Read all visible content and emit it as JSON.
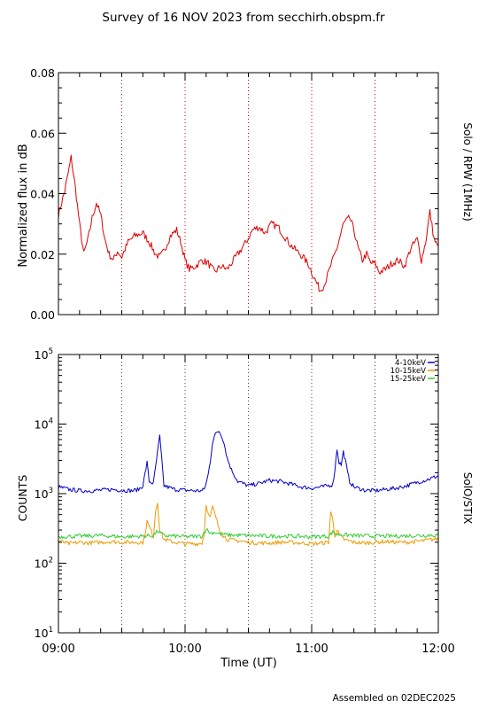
{
  "title": "Survey of 16 NOV 2023 from secchirh.obspm.fr",
  "footer": "Assembled on 02DEC2025",
  "xlabel": "Time (UT)",
  "x_ticks": [
    "09:00",
    "10:00",
    "11:00",
    "12:00"
  ],
  "chart_data": [
    {
      "type": "line",
      "name": "rpw",
      "ylabel": "Normalized flux in dB",
      "right_label": "Solo / RPW (1MHz)",
      "xlim": [
        "09:00",
        "12:00"
      ],
      "ylim": [
        0,
        0.08
      ],
      "y_ticks": [
        "0.00",
        "0.02",
        "0.04",
        "0.06",
        "0.08"
      ],
      "grid": "dotted red vertical lines every 30 min",
      "series": [
        {
          "color": "#dd0000",
          "x": [
            "09:00",
            "09:03",
            "09:05",
            "09:06",
            "09:08",
            "09:10",
            "09:12",
            "09:14",
            "09:16",
            "09:18",
            "09:20",
            "09:22",
            "09:24",
            "09:26",
            "09:28",
            "09:30",
            "09:33",
            "09:36",
            "09:40",
            "09:43",
            "09:46",
            "09:48",
            "09:50",
            "09:53",
            "09:56",
            "09:58",
            "10:00",
            "10:02",
            "10:05",
            "10:08",
            "10:11",
            "10:14",
            "10:17",
            "10:20",
            "10:23",
            "10:26",
            "10:29",
            "10:32",
            "10:35",
            "10:38",
            "10:41",
            "10:44",
            "10:47",
            "10:50",
            "10:53",
            "10:56",
            "10:59",
            "11:00",
            "11:02",
            "11:04",
            "11:06",
            "11:08",
            "11:10",
            "11:12",
            "11:15",
            "11:18",
            "11:20",
            "11:22",
            "11:24",
            "11:26",
            "11:28",
            "11:30",
            "11:32",
            "11:35",
            "11:38",
            "11:41",
            "11:44",
            "11:47",
            "11:50",
            "11:52",
            "11:54",
            "11:56",
            "11:58",
            "12:00"
          ],
          "values": [
            0.033,
            0.041,
            0.048,
            0.052,
            0.042,
            0.03,
            0.02,
            0.025,
            0.032,
            0.037,
            0.033,
            0.025,
            0.02,
            0.018,
            0.021,
            0.019,
            0.024,
            0.026,
            0.027,
            0.024,
            0.02,
            0.019,
            0.021,
            0.026,
            0.028,
            0.024,
            0.018,
            0.015,
            0.016,
            0.018,
            0.017,
            0.014,
            0.016,
            0.015,
            0.018,
            0.021,
            0.024,
            0.028,
            0.029,
            0.027,
            0.03,
            0.029,
            0.026,
            0.023,
            0.021,
            0.019,
            0.016,
            0.014,
            0.011,
            0.008,
            0.01,
            0.014,
            0.018,
            0.022,
            0.03,
            0.032,
            0.028,
            0.022,
            0.018,
            0.02,
            0.017,
            0.017,
            0.014,
            0.015,
            0.017,
            0.018,
            0.016,
            0.022,
            0.025,
            0.018,
            0.024,
            0.034,
            0.025,
            0.022
          ]
        }
      ]
    },
    {
      "type": "line",
      "name": "stix",
      "ylabel": "COUNTS",
      "right_label": "SolO/STIX",
      "xlim": [
        "09:00",
        "12:00"
      ],
      "ylim": [
        10,
        100000
      ],
      "yscale": "log",
      "y_ticks": [
        {
          "base": "10",
          "exp": "1",
          "value": 10
        },
        {
          "base": "10",
          "exp": "2",
          "value": 100
        },
        {
          "base": "10",
          "exp": "3",
          "value": 1000
        },
        {
          "base": "10",
          "exp": "4",
          "value": 10000
        },
        {
          "base": "10",
          "exp": "5",
          "value": 100000
        }
      ],
      "legend_position": "top-right",
      "grid": "dotted vertical lines every 30 min",
      "series": [
        {
          "name": "4-10keV",
          "color": "#0000cc",
          "x": [
            "09:00",
            "09:05",
            "09:10",
            "09:15",
            "09:20",
            "09:25",
            "09:30",
            "09:35",
            "09:38",
            "09:40",
            "09:42",
            "09:43",
            "09:45",
            "09:47",
            "09:48",
            "09:50",
            "09:55",
            "10:00",
            "10:05",
            "10:08",
            "10:09",
            "10:10",
            "10:11",
            "10:12",
            "10:13",
            "10:14",
            "10:15",
            "10:16",
            "10:17",
            "10:18",
            "10:19",
            "10:20",
            "10:22",
            "10:25",
            "10:30",
            "10:35",
            "10:40",
            "10:45",
            "10:50",
            "10:55",
            "11:00",
            "11:05",
            "11:10",
            "11:11",
            "11:12",
            "11:13",
            "11:14",
            "11:15",
            "11:16",
            "11:17",
            "11:18",
            "11:20",
            "11:25",
            "11:30",
            "11:35",
            "11:40",
            "11:45",
            "11:50",
            "11:55",
            "12:00"
          ],
          "values": [
            1250,
            1150,
            1100,
            1100,
            1120,
            1150,
            1120,
            1100,
            1150,
            1300,
            2800,
            1500,
            1400,
            4000,
            6700,
            1300,
            1150,
            1120,
            1100,
            1100,
            1150,
            1400,
            1900,
            3000,
            5500,
            6800,
            7500,
            8000,
            7200,
            6000,
            4500,
            3200,
            2200,
            1500,
            1300,
            1400,
            1550,
            1500,
            1380,
            1250,
            1200,
            1250,
            1350,
            2200,
            4400,
            2800,
            2600,
            4000,
            3000,
            2000,
            1500,
            1250,
            1120,
            1100,
            1150,
            1200,
            1300,
            1450,
            1600,
            1800
          ]
        },
        {
          "name": "10-15keV",
          "color": "#ee9900",
          "x": [
            "09:00",
            "09:05",
            "09:10",
            "09:15",
            "09:20",
            "09:25",
            "09:30",
            "09:35",
            "09:40",
            "09:41",
            "09:42",
            "09:45",
            "09:46",
            "09:47",
            "09:48",
            "09:50",
            "09:55",
            "10:00",
            "10:05",
            "10:08",
            "10:09",
            "10:10",
            "10:11",
            "10:12",
            "10:13",
            "10:14",
            "10:15",
            "10:16",
            "10:17",
            "10:18",
            "10:20",
            "10:25",
            "10:30",
            "10:35",
            "10:40",
            "10:45",
            "10:50",
            "10:55",
            "11:00",
            "11:05",
            "11:08",
            "11:09",
            "11:10",
            "11:11",
            "11:12",
            "11:13",
            "11:15",
            "11:20",
            "11:25",
            "11:30",
            "11:35",
            "11:40",
            "11:45",
            "11:50",
            "11:55",
            "12:00"
          ],
          "values": [
            210,
            190,
            200,
            195,
            200,
            205,
            200,
            200,
            200,
            260,
            400,
            240,
            550,
            760,
            300,
            220,
            200,
            190,
            190,
            195,
            260,
            720,
            500,
            450,
            650,
            520,
            420,
            330,
            280,
            250,
            220,
            210,
            200,
            195,
            195,
            200,
            200,
            195,
            190,
            195,
            200,
            550,
            420,
            250,
            300,
            260,
            220,
            200,
            195,
            200,
            205,
            200,
            200,
            205,
            215,
            225
          ]
        },
        {
          "name": "15-25keV",
          "color": "#33cc33",
          "x": [
            "09:00",
            "09:10",
            "09:20",
            "09:30",
            "09:40",
            "09:45",
            "09:47",
            "09:50",
            "10:00",
            "10:08",
            "10:10",
            "10:12",
            "10:14",
            "10:16",
            "10:20",
            "10:30",
            "10:40",
            "10:50",
            "11:00",
            "11:08",
            "11:10",
            "11:12",
            "11:20",
            "11:30",
            "11:40",
            "11:50",
            "12:00"
          ],
          "values": [
            240,
            245,
            250,
            240,
            245,
            250,
            290,
            250,
            240,
            245,
            310,
            270,
            280,
            265,
            255,
            250,
            245,
            245,
            240,
            245,
            280,
            260,
            250,
            245,
            245,
            250,
            255
          ]
        }
      ]
    }
  ]
}
